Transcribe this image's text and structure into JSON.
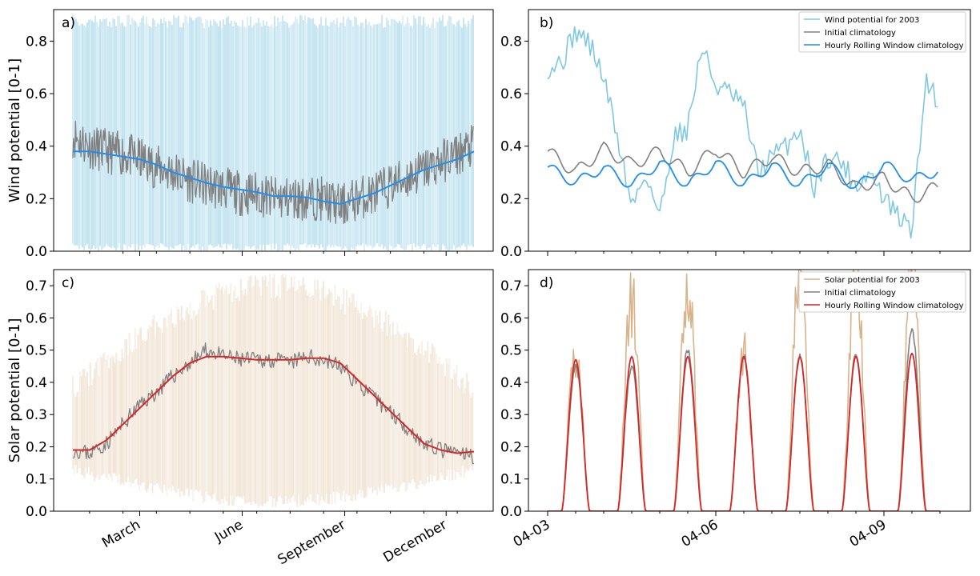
{
  "colors": {
    "wind_light": "#7ec8e3",
    "wind_band": "#a8d8ea",
    "solar_light": "#d9b48a",
    "solar_band": "#ecd9c3",
    "initial": "#808080",
    "wind_rolling": "#1f8ef1",
    "solar_rolling": "#d62728"
  },
  "chart_data": [
    {
      "panel": "a)",
      "type": "line",
      "ylabel": "Wind potential [0-1]",
      "ylim": [
        0,
        0.92
      ],
      "yticks": [
        "0.0",
        "0.2",
        "0.4",
        "0.6",
        "0.8"
      ],
      "x_ticklabels": [
        "March",
        "June",
        "September",
        "December"
      ],
      "band": {
        "low": 0.0,
        "high": 0.9
      },
      "series": [
        {
          "role": "initial",
          "x": [
            0,
            15,
            30,
            45,
            60,
            75,
            90,
            105,
            120,
            135,
            150,
            165,
            180,
            195,
            210,
            225,
            240,
            255,
            270,
            285,
            300,
            315,
            330,
            345,
            360
          ],
          "values": [
            0.44,
            0.4,
            0.38,
            0.37,
            0.35,
            0.32,
            0.3,
            0.27,
            0.25,
            0.24,
            0.22,
            0.22,
            0.2,
            0.2,
            0.2,
            0.2,
            0.17,
            0.2,
            0.22,
            0.25,
            0.28,
            0.31,
            0.34,
            0.37,
            0.4
          ]
        },
        {
          "role": "rolling",
          "x": [
            0,
            15,
            30,
            45,
            60,
            75,
            90,
            105,
            120,
            135,
            150,
            165,
            180,
            195,
            210,
            225,
            240,
            255,
            270,
            285,
            300,
            315,
            330,
            345,
            360
          ],
          "values": [
            0.38,
            0.38,
            0.37,
            0.36,
            0.35,
            0.33,
            0.3,
            0.28,
            0.26,
            0.245,
            0.235,
            0.225,
            0.21,
            0.21,
            0.205,
            0.19,
            0.18,
            0.2,
            0.22,
            0.25,
            0.28,
            0.31,
            0.33,
            0.35,
            0.38
          ]
        }
      ]
    },
    {
      "panel": "b)",
      "type": "line",
      "ylim": [
        0,
        0.92
      ],
      "yticks": [
        "0.0",
        "0.2",
        "0.4",
        "0.6",
        "0.8"
      ],
      "legend": [
        "Wind potential for 2003",
        "Initial climatology",
        "Hourly Rolling Window climatology"
      ],
      "series": [
        {
          "role": "year",
          "x": [
            0,
            0.25,
            0.5,
            0.75,
            1,
            1.25,
            1.5,
            1.75,
            2,
            2.25,
            2.5,
            2.75,
            3,
            3.25,
            3.5,
            3.75,
            4,
            4.25,
            4.5,
            4.75,
            5,
            5.25,
            5.5,
            5.75,
            6,
            6.25,
            6.5,
            6.75,
            7
          ],
          "values": [
            0.7,
            0.72,
            0.84,
            0.79,
            0.66,
            0.43,
            0.17,
            0.3,
            0.13,
            0.44,
            0.47,
            0.78,
            0.63,
            0.6,
            0.55,
            0.3,
            0.36,
            0.4,
            0.47,
            0.24,
            0.36,
            0.34,
            0.25,
            0.3,
            0.2,
            0.13,
            0.08,
            0.66,
            0.56
          ]
        },
        {
          "role": "initial",
          "x": [
            0,
            0.5,
            1,
            1.5,
            2,
            2.5,
            3,
            3.5,
            4,
            4.5,
            5,
            5.5,
            6,
            6.5,
            7
          ],
          "values": [
            0.38,
            0.3,
            0.39,
            0.33,
            0.38,
            0.3,
            0.39,
            0.3,
            0.36,
            0.3,
            0.33,
            0.24,
            0.28,
            0.2,
            0.25
          ]
        },
        {
          "role": "rolling",
          "x": [
            0,
            0.5,
            1,
            1.5,
            2,
            2.5,
            3,
            3.5,
            4,
            4.5,
            5,
            5.5,
            6,
            6.5,
            7
          ],
          "values": [
            0.32,
            0.26,
            0.32,
            0.25,
            0.34,
            0.25,
            0.34,
            0.25,
            0.33,
            0.25,
            0.33,
            0.24,
            0.33,
            0.27,
            0.31
          ]
        }
      ],
      "x_ticklabels": [
        "04-03",
        "04-06",
        "04-09"
      ],
      "x_ticks": [
        0,
        3,
        6
      ]
    },
    {
      "panel": "c)",
      "type": "line",
      "ylabel": "Solar potential [0-1]",
      "ylim": [
        0,
        0.75
      ],
      "yticks": [
        "0.0",
        "0.1",
        "0.2",
        "0.3",
        "0.4",
        "0.5",
        "0.6",
        "0.7"
      ],
      "x_ticklabels": [
        "March",
        "June",
        "September",
        "December"
      ],
      "series": [
        {
          "role": "initial",
          "x": [
            0,
            15,
            30,
            45,
            60,
            75,
            90,
            105,
            120,
            135,
            150,
            165,
            180,
            195,
            210,
            225,
            240,
            255,
            270,
            285,
            300,
            315,
            330,
            345,
            360
          ],
          "values": [
            0.19,
            0.18,
            0.21,
            0.27,
            0.33,
            0.37,
            0.42,
            0.46,
            0.5,
            0.48,
            0.47,
            0.47,
            0.47,
            0.46,
            0.48,
            0.47,
            0.45,
            0.4,
            0.35,
            0.31,
            0.26,
            0.21,
            0.19,
            0.18,
            0.17
          ]
        },
        {
          "role": "rolling",
          "x": [
            0,
            15,
            30,
            45,
            60,
            75,
            90,
            105,
            120,
            135,
            150,
            165,
            180,
            195,
            210,
            225,
            240,
            255,
            270,
            285,
            300,
            315,
            330,
            345,
            360
          ],
          "values": [
            0.19,
            0.19,
            0.22,
            0.27,
            0.32,
            0.37,
            0.42,
            0.46,
            0.48,
            0.48,
            0.475,
            0.47,
            0.47,
            0.47,
            0.475,
            0.475,
            0.46,
            0.41,
            0.36,
            0.31,
            0.26,
            0.21,
            0.19,
            0.18,
            0.185
          ]
        }
      ]
    },
    {
      "panel": "d)",
      "type": "line",
      "ylim": [
        0,
        0.75
      ],
      "yticks": [
        "0.0",
        "0.1",
        "0.2",
        "0.3",
        "0.4",
        "0.5",
        "0.6",
        "0.7"
      ],
      "legend": [
        "Solar potential for 2003",
        "Initial climatology",
        "Hourly Rolling Window climatology"
      ],
      "x_ticklabels": [
        "04-03",
        "04-06",
        "04-09"
      ],
      "x_ticks": [
        0,
        3,
        6
      ],
      "days": [
        0,
        1,
        2,
        3,
        4,
        5,
        6
      ],
      "peaks_year": [
        0.49,
        0.65,
        0.7,
        0.48,
        0.75,
        0.75,
        0.75
      ],
      "peaks_initial": [
        0.45,
        0.45,
        0.5,
        0.48,
        0.48,
        0.49,
        0.56
      ],
      "peaks_rolling": [
        0.47,
        0.48,
        0.48,
        0.48,
        0.48,
        0.48,
        0.49
      ]
    }
  ]
}
